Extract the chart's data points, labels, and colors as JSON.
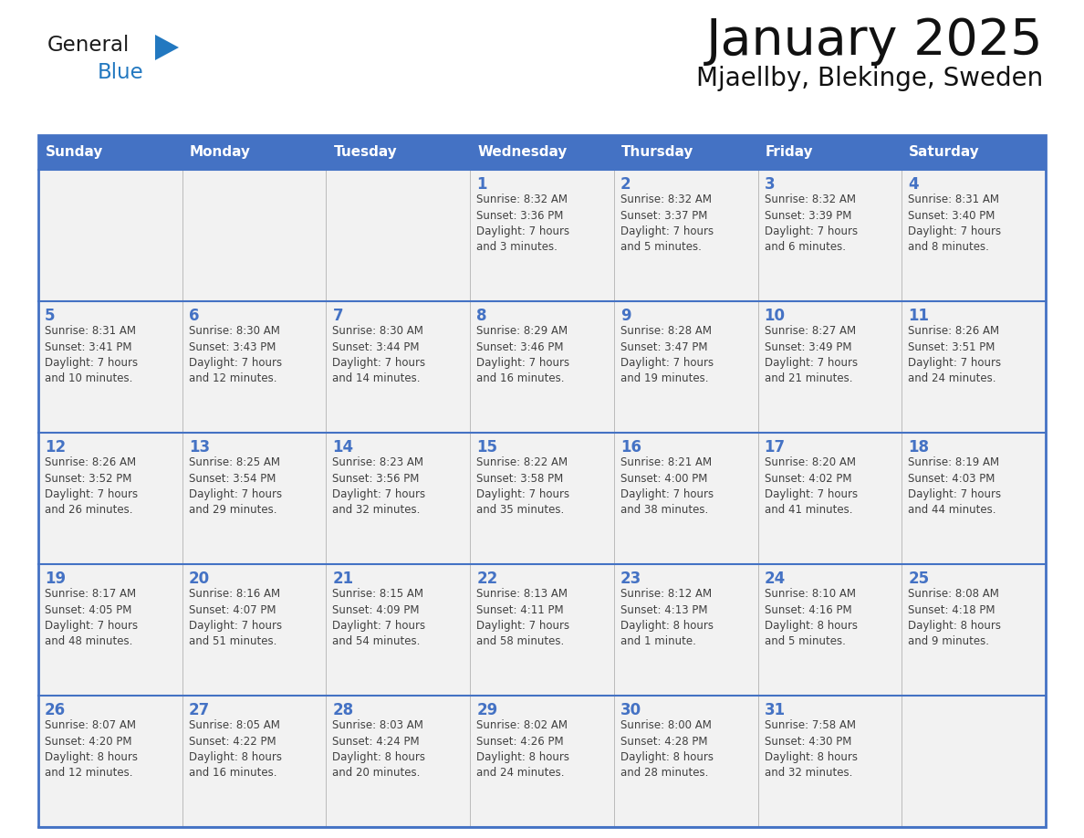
{
  "title": "January 2025",
  "subtitle": "Mjaellby, Blekinge, Sweden",
  "days_of_week": [
    "Sunday",
    "Monday",
    "Tuesday",
    "Wednesday",
    "Thursday",
    "Friday",
    "Saturday"
  ],
  "header_bg": "#4472C4",
  "header_text": "#FFFFFF",
  "cell_bg": "#F2F2F2",
  "day_number_color": "#4472C4",
  "info_text_color": "#404040",
  "border_color": "#4472C4",
  "row_line_color": "#4472C4",
  "calendar_data": [
    [
      {
        "day": null,
        "info": ""
      },
      {
        "day": null,
        "info": ""
      },
      {
        "day": null,
        "info": ""
      },
      {
        "day": 1,
        "info": "Sunrise: 8:32 AM\nSunset: 3:36 PM\nDaylight: 7 hours\nand 3 minutes."
      },
      {
        "day": 2,
        "info": "Sunrise: 8:32 AM\nSunset: 3:37 PM\nDaylight: 7 hours\nand 5 minutes."
      },
      {
        "day": 3,
        "info": "Sunrise: 8:32 AM\nSunset: 3:39 PM\nDaylight: 7 hours\nand 6 minutes."
      },
      {
        "day": 4,
        "info": "Sunrise: 8:31 AM\nSunset: 3:40 PM\nDaylight: 7 hours\nand 8 minutes."
      }
    ],
    [
      {
        "day": 5,
        "info": "Sunrise: 8:31 AM\nSunset: 3:41 PM\nDaylight: 7 hours\nand 10 minutes."
      },
      {
        "day": 6,
        "info": "Sunrise: 8:30 AM\nSunset: 3:43 PM\nDaylight: 7 hours\nand 12 minutes."
      },
      {
        "day": 7,
        "info": "Sunrise: 8:30 AM\nSunset: 3:44 PM\nDaylight: 7 hours\nand 14 minutes."
      },
      {
        "day": 8,
        "info": "Sunrise: 8:29 AM\nSunset: 3:46 PM\nDaylight: 7 hours\nand 16 minutes."
      },
      {
        "day": 9,
        "info": "Sunrise: 8:28 AM\nSunset: 3:47 PM\nDaylight: 7 hours\nand 19 minutes."
      },
      {
        "day": 10,
        "info": "Sunrise: 8:27 AM\nSunset: 3:49 PM\nDaylight: 7 hours\nand 21 minutes."
      },
      {
        "day": 11,
        "info": "Sunrise: 8:26 AM\nSunset: 3:51 PM\nDaylight: 7 hours\nand 24 minutes."
      }
    ],
    [
      {
        "day": 12,
        "info": "Sunrise: 8:26 AM\nSunset: 3:52 PM\nDaylight: 7 hours\nand 26 minutes."
      },
      {
        "day": 13,
        "info": "Sunrise: 8:25 AM\nSunset: 3:54 PM\nDaylight: 7 hours\nand 29 minutes."
      },
      {
        "day": 14,
        "info": "Sunrise: 8:23 AM\nSunset: 3:56 PM\nDaylight: 7 hours\nand 32 minutes."
      },
      {
        "day": 15,
        "info": "Sunrise: 8:22 AM\nSunset: 3:58 PM\nDaylight: 7 hours\nand 35 minutes."
      },
      {
        "day": 16,
        "info": "Sunrise: 8:21 AM\nSunset: 4:00 PM\nDaylight: 7 hours\nand 38 minutes."
      },
      {
        "day": 17,
        "info": "Sunrise: 8:20 AM\nSunset: 4:02 PM\nDaylight: 7 hours\nand 41 minutes."
      },
      {
        "day": 18,
        "info": "Sunrise: 8:19 AM\nSunset: 4:03 PM\nDaylight: 7 hours\nand 44 minutes."
      }
    ],
    [
      {
        "day": 19,
        "info": "Sunrise: 8:17 AM\nSunset: 4:05 PM\nDaylight: 7 hours\nand 48 minutes."
      },
      {
        "day": 20,
        "info": "Sunrise: 8:16 AM\nSunset: 4:07 PM\nDaylight: 7 hours\nand 51 minutes."
      },
      {
        "day": 21,
        "info": "Sunrise: 8:15 AM\nSunset: 4:09 PM\nDaylight: 7 hours\nand 54 minutes."
      },
      {
        "day": 22,
        "info": "Sunrise: 8:13 AM\nSunset: 4:11 PM\nDaylight: 7 hours\nand 58 minutes."
      },
      {
        "day": 23,
        "info": "Sunrise: 8:12 AM\nSunset: 4:13 PM\nDaylight: 8 hours\nand 1 minute."
      },
      {
        "day": 24,
        "info": "Sunrise: 8:10 AM\nSunset: 4:16 PM\nDaylight: 8 hours\nand 5 minutes."
      },
      {
        "day": 25,
        "info": "Sunrise: 8:08 AM\nSunset: 4:18 PM\nDaylight: 8 hours\nand 9 minutes."
      }
    ],
    [
      {
        "day": 26,
        "info": "Sunrise: 8:07 AM\nSunset: 4:20 PM\nDaylight: 8 hours\nand 12 minutes."
      },
      {
        "day": 27,
        "info": "Sunrise: 8:05 AM\nSunset: 4:22 PM\nDaylight: 8 hours\nand 16 minutes."
      },
      {
        "day": 28,
        "info": "Sunrise: 8:03 AM\nSunset: 4:24 PM\nDaylight: 8 hours\nand 20 minutes."
      },
      {
        "day": 29,
        "info": "Sunrise: 8:02 AM\nSunset: 4:26 PM\nDaylight: 8 hours\nand 24 minutes."
      },
      {
        "day": 30,
        "info": "Sunrise: 8:00 AM\nSunset: 4:28 PM\nDaylight: 8 hours\nand 28 minutes."
      },
      {
        "day": 31,
        "info": "Sunrise: 7:58 AM\nSunset: 4:30 PM\nDaylight: 8 hours\nand 32 minutes."
      },
      {
        "day": null,
        "info": ""
      }
    ]
  ],
  "logo_general_color": "#1a1a1a",
  "logo_blue_color": "#2278C0",
  "logo_triangle_color": "#2278C0"
}
